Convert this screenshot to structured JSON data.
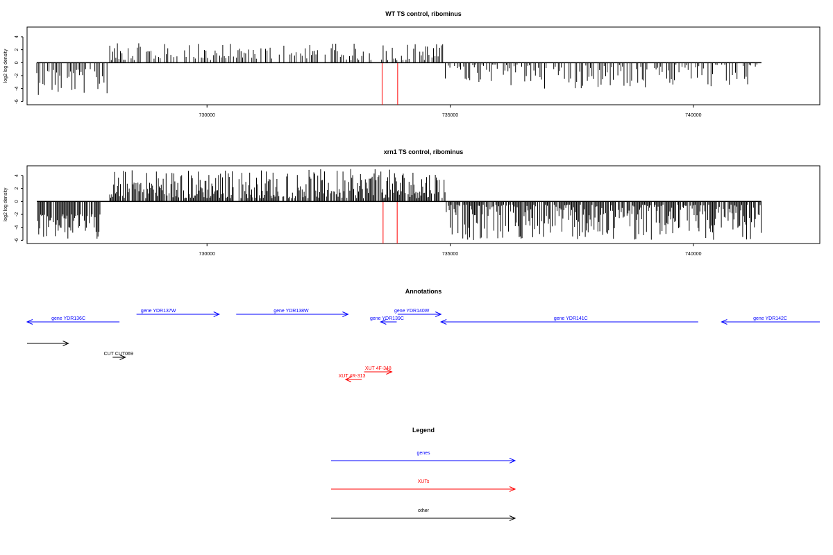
{
  "colors": {
    "genes": "#0000ff",
    "xuts": "#ff0000",
    "other": "#000000",
    "bars": "#000000",
    "highlight": "#ff0000"
  },
  "chart_data": [
    {
      "type": "bar",
      "title": "WT TS control, ribominus",
      "ylabel": "log2 log density",
      "xlim": [
        726300,
        742600
      ],
      "ylim": [
        -6.5,
        5.5
      ],
      "x_ticks": [
        730000,
        735000,
        740000
      ],
      "y_ticks": [
        4,
        2,
        0,
        -2,
        -4,
        -6
      ],
      "segments": [
        {
          "from": 726500,
          "to": 728000,
          "sign": -1,
          "min": 1.0,
          "max": 5.0
        },
        {
          "from": 728000,
          "to": 734900,
          "sign": 1,
          "min": 0.4,
          "max": 3.0
        },
        {
          "from": 734900,
          "to": 741400,
          "sign": -1,
          "min": 0.3,
          "max": 4.0
        }
      ],
      "highlights": [
        {
          "x": 733600,
          "value": -6.5
        },
        {
          "x": 733920,
          "value": -6.5
        }
      ]
    },
    {
      "type": "bar",
      "title": "xrn1 TS control, ribominus",
      "ylabel": "log2 log density",
      "xlim": [
        726300,
        742600
      ],
      "ylim": [
        -6.5,
        5.5
      ],
      "x_ticks": [
        730000,
        735000,
        740000
      ],
      "y_ticks": [
        4,
        2,
        0,
        -2,
        -4,
        -6
      ],
      "segments": [
        {
          "from": 726500,
          "to": 727800,
          "sign": -1,
          "min": 2.0,
          "max": 6.0
        },
        {
          "from": 728000,
          "to": 734900,
          "sign": 1,
          "min": 0.5,
          "max": 5.0
        },
        {
          "from": 734900,
          "to": 741400,
          "sign": -1,
          "min": 0.5,
          "max": 6.0
        }
      ],
      "highlights": [
        {
          "x": 733620,
          "value": -6.5
        },
        {
          "x": 733910,
          "value": -6.5
        }
      ]
    }
  ],
  "annotations": {
    "title": "Annotations",
    "features": [
      {
        "label": "gene YDR136C",
        "from": 726300,
        "to": 728200,
        "strand": "-",
        "row": 1,
        "class": "genes",
        "label_at": 727150
      },
      {
        "label": "gene YDR137W",
        "from": 728550,
        "to": 730250,
        "strand": "+",
        "row": 0,
        "class": "genes",
        "label_at": 729000
      },
      {
        "label": "gene YDR138W",
        "from": 730600,
        "to": 732900,
        "strand": "+",
        "row": 0,
        "class": "genes",
        "label_at": 731730
      },
      {
        "label": "gene YDR139C",
        "from": 733570,
        "to": 733900,
        "strand": "-",
        "row": 1,
        "class": "genes",
        "label_at": 733700
      },
      {
        "label": "gene YDR140W",
        "from": 733920,
        "to": 734810,
        "strand": "+",
        "row": 0,
        "class": "genes",
        "label_at": 734210
      },
      {
        "label": "gene YDR141C",
        "from": 734810,
        "to": 740100,
        "strand": "-",
        "row": 1,
        "class": "genes",
        "label_at": 737480
      },
      {
        "label": "gene YDR142C",
        "from": 740580,
        "to": 742600,
        "strand": "-",
        "row": 1,
        "class": "genes",
        "label_at": 741580
      },
      {
        "label": "",
        "from": 726300,
        "to": 727150,
        "strand": "+",
        "row": 3,
        "class": "other",
        "label_at": 726700
      },
      {
        "label": "CUT CUT069",
        "from": 728060,
        "to": 728320,
        "strand": "+",
        "row": 5,
        "class": "other",
        "label_at": 728180
      },
      {
        "label": "XUT 4F-348",
        "from": 733230,
        "to": 733800,
        "strand": "+",
        "row": 7,
        "class": "xuts",
        "label_at": 733520
      },
      {
        "label": "XUT 4R-313",
        "from": 732850,
        "to": 733180,
        "strand": "-",
        "row": 8,
        "class": "xuts",
        "label_at": 732980
      }
    ]
  },
  "legend": {
    "title": "Legend",
    "items": [
      {
        "label": "genes",
        "class": "genes"
      },
      {
        "label": "XUTs",
        "class": "xuts"
      },
      {
        "label": "other",
        "class": "other"
      }
    ]
  }
}
